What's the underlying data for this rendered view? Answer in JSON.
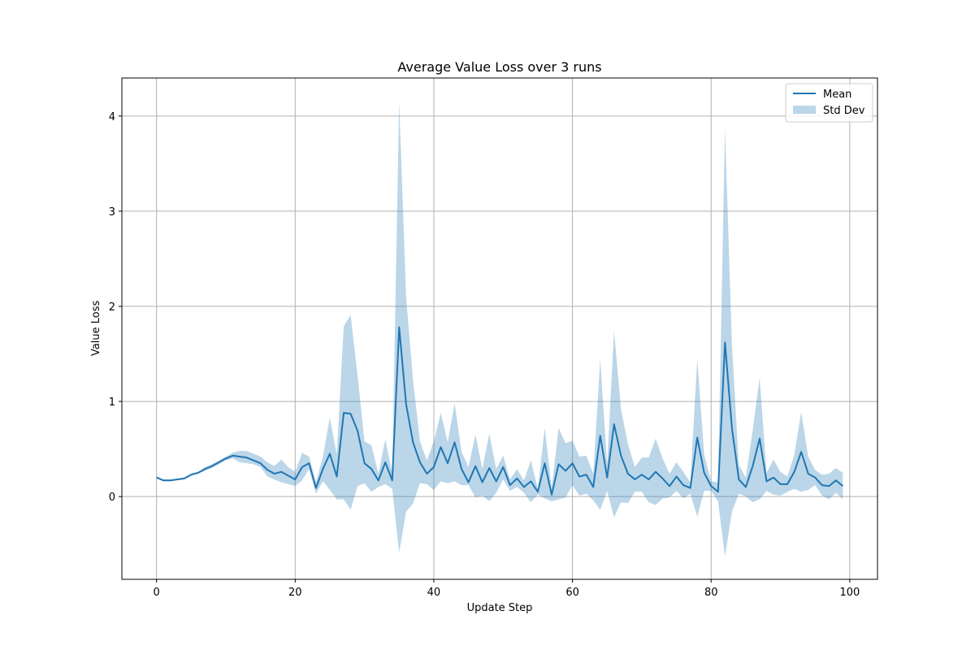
{
  "chart_data": {
    "type": "line",
    "title": "Average Value Loss over 3 runs",
    "xlabel": "Update Step",
    "ylabel": "Value Loss",
    "xlim": [
      -5,
      104
    ],
    "ylim": [
      -0.87,
      4.4
    ],
    "xticks": [
      0,
      20,
      40,
      60,
      80,
      100
    ],
    "yticks": [
      0,
      1,
      2,
      3,
      4
    ],
    "grid": true,
    "legend_position": "top-right",
    "colors": {
      "mean": "#1f77b4",
      "band": "#1f77b4"
    },
    "series": [
      {
        "name": "Mean",
        "kind": "line",
        "x": [
          0,
          1,
          2,
          3,
          4,
          5,
          6,
          7,
          8,
          9,
          10,
          11,
          12,
          13,
          14,
          15,
          16,
          17,
          18,
          19,
          20,
          21,
          22,
          23,
          24,
          25,
          26,
          27,
          28,
          29,
          30,
          31,
          32,
          33,
          34,
          35,
          36,
          37,
          38,
          39,
          40,
          41,
          42,
          43,
          44,
          45,
          46,
          47,
          48,
          49,
          50,
          51,
          52,
          53,
          54,
          55,
          56,
          57,
          58,
          59,
          60,
          61,
          62,
          63,
          64,
          65,
          66,
          67,
          68,
          69,
          70,
          71,
          72,
          73,
          74,
          75,
          76,
          77,
          78,
          79,
          80,
          81,
          82,
          83,
          84,
          85,
          86,
          87,
          88,
          89,
          90,
          91,
          92,
          93,
          94,
          95,
          96,
          97,
          98,
          99
        ],
        "values": [
          0.2,
          0.17,
          0.17,
          0.18,
          0.19,
          0.23,
          0.25,
          0.29,
          0.32,
          0.36,
          0.4,
          0.43,
          0.42,
          0.41,
          0.38,
          0.35,
          0.28,
          0.24,
          0.26,
          0.22,
          0.18,
          0.31,
          0.35,
          0.09,
          0.29,
          0.45,
          0.21,
          0.88,
          0.87,
          0.69,
          0.35,
          0.29,
          0.17,
          0.36,
          0.17,
          1.78,
          0.97,
          0.57,
          0.36,
          0.24,
          0.31,
          0.52,
          0.35,
          0.57,
          0.29,
          0.15,
          0.32,
          0.15,
          0.3,
          0.16,
          0.31,
          0.12,
          0.19,
          0.1,
          0.16,
          0.05,
          0.35,
          0.02,
          0.34,
          0.27,
          0.35,
          0.21,
          0.23,
          0.1,
          0.64,
          0.2,
          0.76,
          0.43,
          0.24,
          0.18,
          0.23,
          0.18,
          0.26,
          0.19,
          0.11,
          0.21,
          0.12,
          0.09,
          0.62,
          0.25,
          0.11,
          0.05,
          1.62,
          0.72,
          0.18,
          0.1,
          0.32,
          0.61,
          0.16,
          0.2,
          0.13,
          0.13,
          0.26,
          0.47,
          0.24,
          0.2,
          0.12,
          0.11,
          0.17,
          0.11
        ]
      },
      {
        "name": "Std Dev",
        "kind": "band",
        "upper": [
          0.21,
          0.18,
          0.18,
          0.19,
          0.2,
          0.24,
          0.26,
          0.31,
          0.34,
          0.38,
          0.42,
          0.46,
          0.48,
          0.48,
          0.45,
          0.42,
          0.36,
          0.32,
          0.39,
          0.31,
          0.26,
          0.46,
          0.42,
          0.15,
          0.42,
          0.83,
          0.44,
          1.79,
          1.91,
          1.27,
          0.58,
          0.54,
          0.24,
          0.6,
          0.25,
          4.15,
          2.1,
          1.22,
          0.58,
          0.38,
          0.58,
          0.88,
          0.57,
          0.98,
          0.47,
          0.31,
          0.65,
          0.29,
          0.66,
          0.29,
          0.43,
          0.18,
          0.29,
          0.17,
          0.38,
          0.08,
          0.72,
          0.09,
          0.72,
          0.56,
          0.59,
          0.42,
          0.43,
          0.24,
          1.44,
          0.34,
          1.74,
          0.92,
          0.55,
          0.31,
          0.41,
          0.41,
          0.61,
          0.4,
          0.24,
          0.36,
          0.26,
          0.15,
          1.45,
          0.44,
          0.16,
          0.15,
          3.87,
          1.6,
          0.33,
          0.2,
          0.7,
          1.25,
          0.25,
          0.39,
          0.26,
          0.21,
          0.44,
          0.89,
          0.42,
          0.28,
          0.23,
          0.24,
          0.3,
          0.25
        ],
        "lower": [
          0.19,
          0.16,
          0.16,
          0.17,
          0.18,
          0.22,
          0.24,
          0.27,
          0.3,
          0.34,
          0.38,
          0.4,
          0.36,
          0.35,
          0.34,
          0.31,
          0.21,
          0.18,
          0.15,
          0.13,
          0.11,
          0.17,
          0.29,
          0.03,
          0.16,
          0.07,
          -0.03,
          -0.03,
          -0.14,
          0.11,
          0.14,
          0.05,
          0.1,
          0.13,
          0.08,
          -0.59,
          -0.16,
          -0.07,
          0.14,
          0.13,
          0.07,
          0.16,
          0.14,
          0.16,
          0.12,
          0.12,
          -0.01,
          0.01,
          -0.05,
          0.04,
          0.18,
          0.06,
          0.1,
          0.04,
          -0.06,
          0.02,
          -0.02,
          -0.05,
          -0.03,
          -0.01,
          0.12,
          0.01,
          0.03,
          -0.04,
          -0.14,
          0.06,
          -0.22,
          -0.06,
          -0.07,
          0.05,
          0.05,
          -0.06,
          -0.09,
          -0.02,
          -0.01,
          0.06,
          -0.02,
          0.03,
          -0.21,
          0.06,
          0.06,
          -0.05,
          -0.63,
          -0.16,
          0.03,
          0.0,
          -0.06,
          -0.03,
          0.06,
          0.02,
          0.01,
          0.05,
          0.08,
          0.05,
          0.07,
          0.12,
          0.01,
          -0.03,
          0.04,
          -0.03
        ]
      }
    ]
  }
}
